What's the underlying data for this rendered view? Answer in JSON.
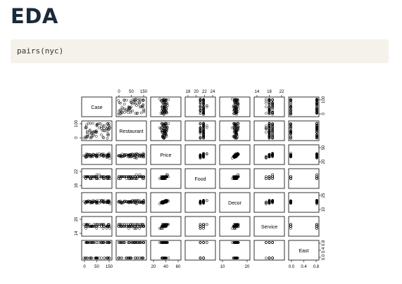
{
  "page": {
    "title": "EDA"
  },
  "code": {
    "text": "pairs(nyc)"
  },
  "chart_data": {
    "type": "scatter",
    "variables": [
      "Case",
      "Restaurant",
      "Price",
      "Food",
      "Decor",
      "Service",
      "East"
    ],
    "axis_ticks": {
      "Case": [
        "0",
        "50",
        "150"
      ],
      "Restaurant": [
        "0",
        "100"
      ],
      "Price": [
        "20",
        "40",
        "60"
      ],
      "Food": [
        "18",
        "20",
        "22",
        "24"
      ],
      "Decor": [
        "10",
        "20"
      ],
      "Service": [
        "14",
        "18",
        "22"
      ],
      "East": [
        "0.0",
        "0.4",
        "0.8"
      ]
    },
    "top_ticks": {
      "Restaurant": [
        "0",
        "50",
        "150"
      ],
      "Food": [
        "18",
        "20",
        "22",
        "24"
      ],
      "Service": [
        "14",
        "18",
        "22"
      ]
    },
    "bottom_ticks": {
      "Case": [
        "0",
        "50",
        "150"
      ],
      "Price": [
        "20",
        "40",
        "60"
      ],
      "Decor": [
        "10",
        "20"
      ],
      "East": [
        "0.0",
        "0.4",
        "0.8"
      ]
    },
    "left_ticks": {
      "Restaurant": [
        "0",
        "100"
      ],
      "Food": [
        "16",
        "22"
      ],
      "Service": [
        "14",
        "20"
      ]
    },
    "right_ticks": {
      "Case": [
        "0",
        "100"
      ],
      "Price": [
        "20",
        "50"
      ],
      "Decor": [
        "10",
        "25"
      ],
      "East": [
        "0.0",
        "0.4",
        "0.8"
      ]
    },
    "grid": false,
    "marker": "open-circle"
  }
}
